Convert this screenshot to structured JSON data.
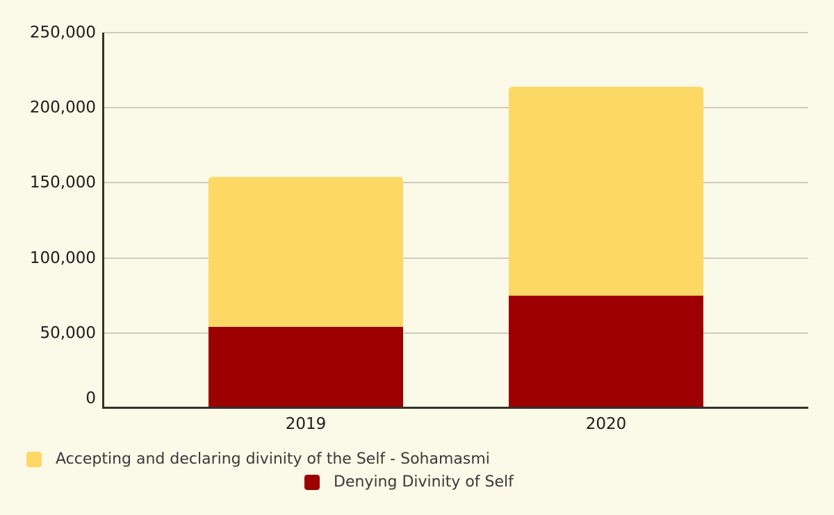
{
  "chart_data": {
    "type": "bar",
    "stacked": true,
    "title": "",
    "xlabel": "",
    "ylabel": "",
    "categories": [
      "2019",
      "2020"
    ],
    "series": [
      {
        "name": "Accepting and declaring divinity of the Self - Sohamasmi",
        "color": "#FDD865",
        "values": [
          100000,
          139000
        ]
      },
      {
        "name": "Denying Divinity of Self",
        "color": "#9C0000",
        "values": [
          54000,
          75000
        ]
      }
    ],
    "stack_order": [
      1,
      0
    ],
    "ylim": [
      0,
      250000
    ],
    "yticks": [
      250000,
      200000,
      150000,
      100000,
      50000,
      0
    ],
    "ytick_labels": [
      "250,000",
      "200,000",
      "150,000",
      "100,000",
      "50,000",
      "0"
    ],
    "grid": true,
    "legend_position": "bottom",
    "background_color": "#FBF9E7",
    "gridline_color": "#CCCCC3",
    "axis_color": "#32322A"
  }
}
